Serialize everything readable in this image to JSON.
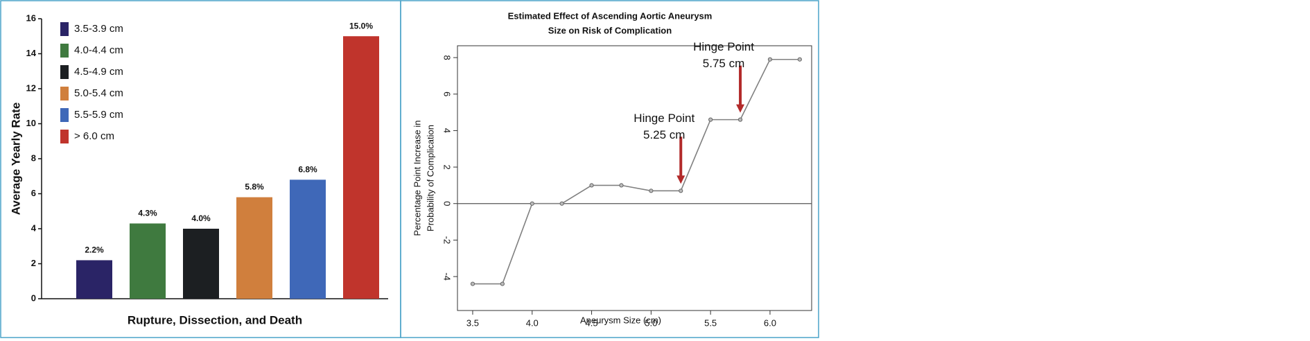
{
  "chart_data": [
    {
      "type": "bar",
      "ylabel": "Average Yearly Rate",
      "xlabel": "Rupture, Dissection, and Death",
      "categories": [
        "3.5-3.9 cm",
        "4.0-4.4 cm",
        "4.5-4.9 cm",
        "5.0-5.4 cm",
        "5.5-5.9 cm",
        "> 6.0 cm"
      ],
      "values": [
        2.2,
        4.3,
        4.0,
        5.8,
        6.8,
        15.0
      ],
      "value_labels": [
        "2.2%",
        "4.3%",
        "4.0%",
        "5.8%",
        "6.8%",
        "15.0%"
      ],
      "colors": [
        "#2a2466",
        "#3f7a3f",
        "#1c1f22",
        "#d07f3d",
        "#3f68b8",
        "#c0342c"
      ],
      "ylim": [
        0,
        16
      ],
      "yticks": [
        0,
        2,
        4,
        6,
        8,
        10,
        12,
        14,
        16
      ],
      "legend": "upper-left"
    },
    {
      "type": "line",
      "title": [
        "Estimated Effect of Ascending Aortic Aneurysm",
        "Size on Risk of Complication"
      ],
      "ylabel": [
        "Percentage Point Increase in",
        "Probability of Complication"
      ],
      "xlabel": "Aneurysm Size (cm)",
      "x": [
        3.5,
        3.75,
        4.0,
        4.25,
        4.5,
        4.75,
        5.0,
        5.25,
        5.5,
        5.75,
        6.0,
        6.25
      ],
      "series": [
        {
          "color": "#808080",
          "values": [
            -4.4,
            -4.4,
            0,
            0,
            1,
            1,
            0.7,
            0.7,
            4.6,
            4.6,
            7.9,
            7.9
          ]
        }
      ],
      "xlim": [
        3.372,
        6.35
      ],
      "ylim": [
        -5.86,
        8.65
      ],
      "xticks": [
        3.5,
        {
          "value": 4,
          "label": "4.0"
        },
        4.5,
        {
          "value": 5,
          "label": "5.0"
        },
        5.5,
        {
          "value": 6,
          "label": "6.0"
        }
      ],
      "yticks": [
        -4,
        -2,
        0,
        2,
        4,
        6,
        8
      ],
      "reference_line": 0,
      "annotations": [
        {
          "text": [
            "Hinge Point",
            "5.25 cm"
          ],
          "x": 5.25,
          "color": "#b22a2a"
        },
        {
          "text": [
            "Hinge Point",
            "5.75 cm"
          ],
          "x": 5.75,
          "color": "#b22a2a"
        }
      ]
    }
  ]
}
